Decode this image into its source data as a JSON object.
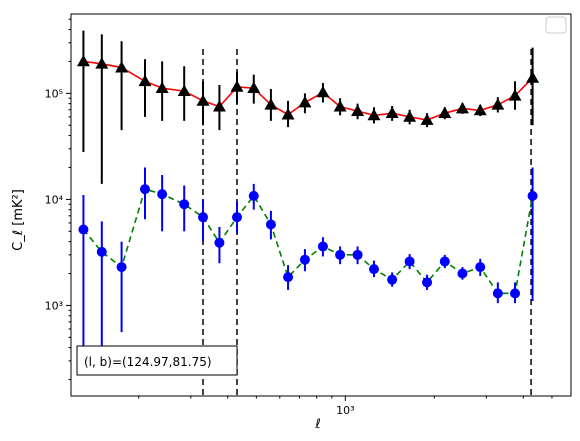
{
  "chart_data": {
    "type": "scatter",
    "xlabel": "ℓ",
    "ylabel": "C_ℓ [mK²]",
    "xscale": "log",
    "yscale": "log",
    "xlim": [
      118,
      5800
    ],
    "ylim": [
      140,
      560000
    ],
    "grid": false,
    "legend": {
      "placement": "top-right",
      "entries": []
    },
    "x_ticks": [
      {
        "value": 1000,
        "label": "10³"
      }
    ],
    "y_ticks": [
      {
        "value": 1000,
        "label": "10³"
      },
      {
        "value": 10000,
        "label": "10⁴"
      },
      {
        "value": 100000,
        "label": "10⁵"
      }
    ],
    "vlines": [
      330,
      430,
      4250
    ],
    "annotation": "(l, b)=(124.97,81.75)",
    "series": [
      {
        "color": "#ff0000",
        "marker": "triangle",
        "marker_color": "#000000",
        "errbar_color": "#000000",
        "linestyle": "solid",
        "points": [
          {
            "x": 130,
            "y": 200000,
            "lo": 28000,
            "hi": 390000
          },
          {
            "x": 150,
            "y": 190000,
            "lo": 14000,
            "hi": 360000
          },
          {
            "x": 175,
            "y": 175000,
            "lo": 45000,
            "hi": 310000
          },
          {
            "x": 210,
            "y": 130000,
            "lo": 60000,
            "hi": 210000
          },
          {
            "x": 240,
            "y": 112000,
            "lo": 55000,
            "hi": 200000
          },
          {
            "x": 285,
            "y": 105000,
            "lo": 55000,
            "hi": 180000
          },
          {
            "x": 330,
            "y": 85000,
            "lo": 50000,
            "hi": 130000
          },
          {
            "x": 375,
            "y": 75000,
            "lo": 45000,
            "hi": 120000
          },
          {
            "x": 430,
            "y": 115000,
            "lo": 80000,
            "hi": 160000
          },
          {
            "x": 490,
            "y": 112000,
            "lo": 80000,
            "hi": 150000
          },
          {
            "x": 560,
            "y": 78000,
            "lo": 55000,
            "hi": 110000
          },
          {
            "x": 640,
            "y": 63000,
            "lo": 48000,
            "hi": 85000
          },
          {
            "x": 730,
            "y": 82000,
            "lo": 65000,
            "hi": 100000
          },
          {
            "x": 840,
            "y": 102000,
            "lo": 82000,
            "hi": 125000
          },
          {
            "x": 960,
            "y": 75000,
            "lo": 62000,
            "hi": 90000
          },
          {
            "x": 1100,
            "y": 68000,
            "lo": 57000,
            "hi": 80000
          },
          {
            "x": 1250,
            "y": 62000,
            "lo": 52000,
            "hi": 74000
          },
          {
            "x": 1440,
            "y": 65000,
            "lo": 55000,
            "hi": 76000
          },
          {
            "x": 1650,
            "y": 60000,
            "lo": 51000,
            "hi": 70000
          },
          {
            "x": 1890,
            "y": 56000,
            "lo": 48000,
            "hi": 65000
          },
          {
            "x": 2170,
            "y": 65000,
            "lo": 57000,
            "hi": 74000
          },
          {
            "x": 2490,
            "y": 72000,
            "lo": 64000,
            "hi": 81000
          },
          {
            "x": 2860,
            "y": 69000,
            "lo": 61000,
            "hi": 78000
          },
          {
            "x": 3280,
            "y": 78000,
            "lo": 66000,
            "hi": 92000
          },
          {
            "x": 3750,
            "y": 95000,
            "lo": 70000,
            "hi": 130000
          },
          {
            "x": 4300,
            "y": 140000,
            "lo": 50000,
            "hi": 270000
          }
        ]
      },
      {
        "color": "#008000",
        "marker": "circle",
        "marker_color": "#0000ff",
        "errbar_color": "#0000ff",
        "linestyle": "dashed",
        "points": [
          {
            "x": 130,
            "y": 5200,
            "lo": 250,
            "hi": 11000
          },
          {
            "x": 150,
            "y": 3200,
            "lo": 250,
            "hi": 6200
          },
          {
            "x": 175,
            "y": 2300,
            "lo": 560,
            "hi": 4000
          },
          {
            "x": 210,
            "y": 12500,
            "lo": 6500,
            "hi": 20000
          },
          {
            "x": 240,
            "y": 11200,
            "lo": 5000,
            "hi": 17000
          },
          {
            "x": 285,
            "y": 9000,
            "lo": 5000,
            "hi": 13500
          },
          {
            "x": 330,
            "y": 6800,
            "lo": 4000,
            "hi": 10000
          },
          {
            "x": 375,
            "y": 3900,
            "lo": 2500,
            "hi": 5500
          },
          {
            "x": 430,
            "y": 6800,
            "lo": 4800,
            "hi": 9500
          },
          {
            "x": 490,
            "y": 10800,
            "lo": 8000,
            "hi": 14000
          },
          {
            "x": 560,
            "y": 5800,
            "lo": 4200,
            "hi": 7800
          },
          {
            "x": 640,
            "y": 1850,
            "lo": 1400,
            "hi": 2400
          },
          {
            "x": 730,
            "y": 2700,
            "lo": 2100,
            "hi": 3400
          },
          {
            "x": 840,
            "y": 3600,
            "lo": 2900,
            "hi": 4400
          },
          {
            "x": 960,
            "y": 3000,
            "lo": 2450,
            "hi": 3600
          },
          {
            "x": 1100,
            "y": 3000,
            "lo": 2450,
            "hi": 3600
          },
          {
            "x": 1250,
            "y": 2200,
            "lo": 1850,
            "hi": 2650
          },
          {
            "x": 1440,
            "y": 1750,
            "lo": 1500,
            "hi": 2050
          },
          {
            "x": 1650,
            "y": 2600,
            "lo": 2200,
            "hi": 3050
          },
          {
            "x": 1890,
            "y": 1650,
            "lo": 1400,
            "hi": 1950
          },
          {
            "x": 2170,
            "y": 2600,
            "lo": 2250,
            "hi": 3000
          },
          {
            "x": 2490,
            "y": 2000,
            "lo": 1750,
            "hi": 2300
          },
          {
            "x": 2860,
            "y": 2300,
            "lo": 1900,
            "hi": 2750
          },
          {
            "x": 3280,
            "y": 1300,
            "lo": 1050,
            "hi": 1650
          },
          {
            "x": 3750,
            "y": 1300,
            "lo": 1050,
            "hi": 1650
          },
          {
            "x": 4300,
            "y": 10800,
            "lo": 1100,
            "hi": 20000
          }
        ]
      }
    ]
  }
}
